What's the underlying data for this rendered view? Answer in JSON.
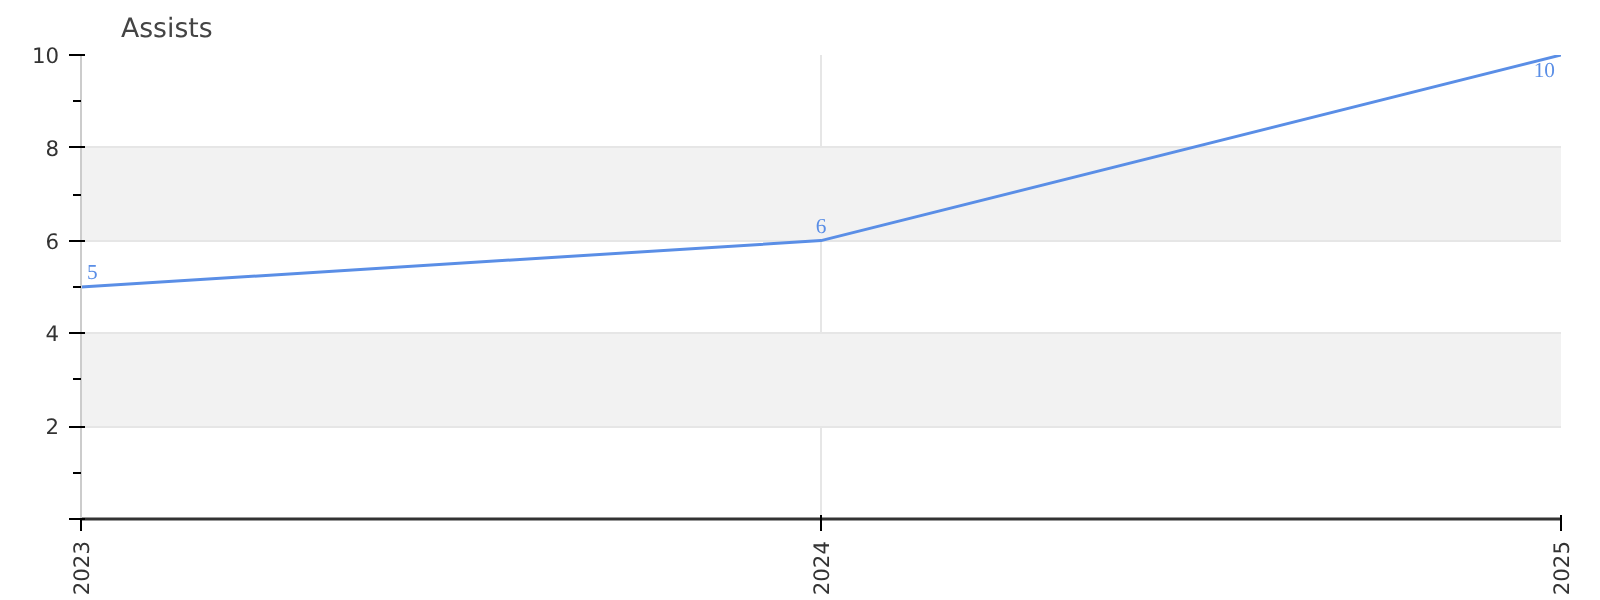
{
  "chart_data": {
    "type": "line",
    "title": "Assists",
    "categories": [
      "2023",
      "2024",
      "2025"
    ],
    "series": [
      {
        "color": "#5a8ee6",
        "values": [
          5,
          6,
          10
        ]
      }
    ],
    "ylim": [
      0,
      10
    ],
    "yticks": [
      {
        "value": 0,
        "label": null
      },
      2,
      4,
      6,
      8,
      10
    ],
    "grid": true,
    "data_labels": true,
    "marker": "none",
    "line_style": "solid"
  }
}
